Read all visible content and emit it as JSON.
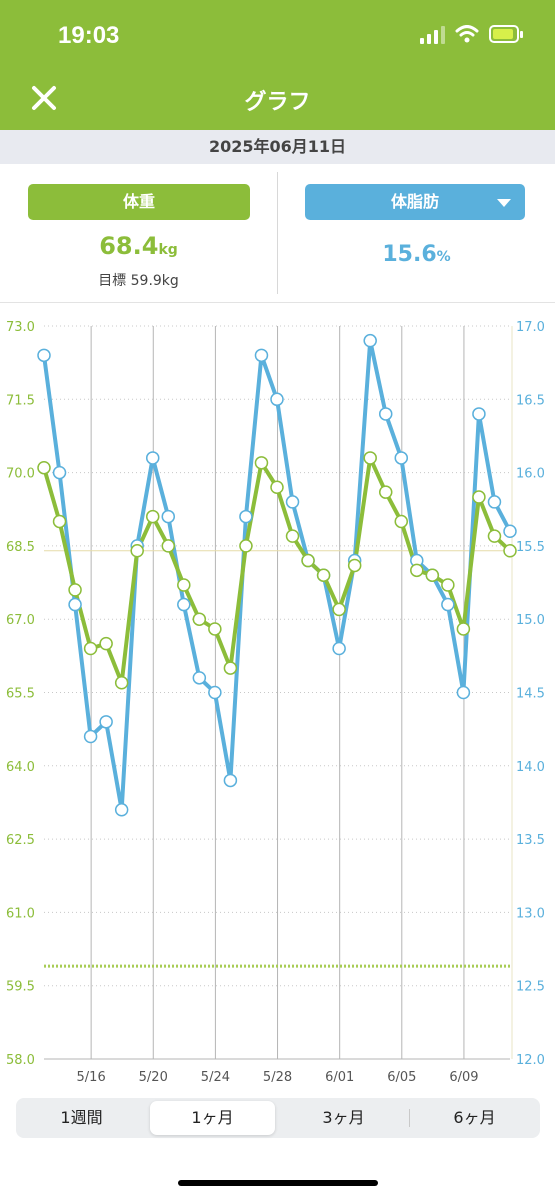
{
  "status": {
    "time": "19:03"
  },
  "header": {
    "title": "グラフ",
    "close_icon": "close-icon"
  },
  "date": "2025年06月11日",
  "weight": {
    "label": "体重",
    "value": "68.4",
    "unit": "kg",
    "goal": "目標 59.9kg",
    "color": "#8cbd3a"
  },
  "body_fat": {
    "label": "体脂肪",
    "value": "15.6",
    "unit": "%",
    "color": "#5ab0dc"
  },
  "periods": [
    {
      "label": "1週間",
      "active": false
    },
    {
      "label": "1ヶ月",
      "active": true
    },
    {
      "label": "3ヶ月",
      "active": false
    },
    {
      "label": "6ヶ月",
      "active": false
    }
  ],
  "chart_data": {
    "type": "line",
    "x_ticks": [
      "5/16",
      "5/20",
      "5/24",
      "5/28",
      "6/01",
      "6/05",
      "6/09"
    ],
    "left_axis": {
      "ticks": [
        "58.0",
        "59.5",
        "61.0",
        "62.5",
        "64.0",
        "65.5",
        "67.0",
        "68.5",
        "70.0",
        "71.5",
        "73.0"
      ],
      "ylim": [
        58.0,
        73.0
      ]
    },
    "right_axis": {
      "ticks": [
        "12.0",
        "12.5",
        "13.0",
        "13.5",
        "14.0",
        "14.5",
        "15.0",
        "15.5",
        "16.0",
        "16.5",
        "17.0"
      ],
      "ylim": [
        12.0,
        17.0
      ]
    },
    "goal_line": 59.9,
    "current_weight_line": 68.4,
    "series": [
      {
        "axis": "left",
        "color": "#8cbd3a",
        "values": [
          70.1,
          69.0,
          67.6,
          66.4,
          66.5,
          65.7,
          68.4,
          69.1,
          68.5,
          67.7,
          67.0,
          66.8,
          66.0,
          68.5,
          70.2,
          69.7,
          68.7,
          68.2,
          67.9,
          67.2,
          68.1,
          70.3,
          69.6,
          69.0,
          68.0,
          67.9,
          67.7,
          66.8,
          69.5,
          68.7,
          68.4
        ]
      },
      {
        "axis": "right",
        "color": "#5ab0dc",
        "values": [
          16.8,
          16.0,
          15.1,
          14.2,
          14.3,
          13.7,
          15.5,
          16.1,
          15.7,
          15.1,
          14.6,
          14.5,
          13.9,
          15.7,
          16.8,
          16.5,
          15.8,
          15.4,
          15.3,
          14.8,
          15.4,
          16.9,
          16.4,
          16.1,
          15.4,
          15.3,
          15.1,
          14.5,
          16.4,
          15.8,
          15.6
        ]
      }
    ]
  }
}
